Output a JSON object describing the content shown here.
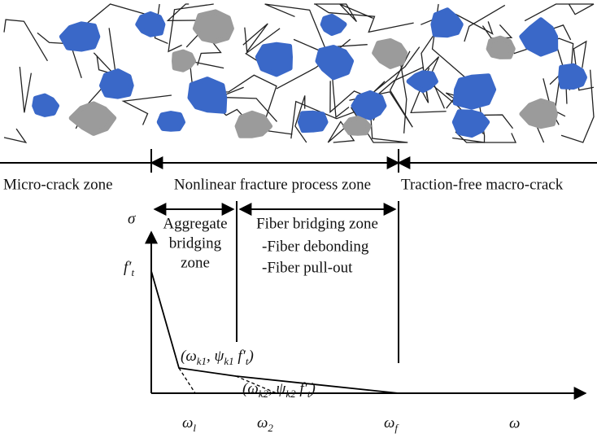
{
  "zones": {
    "micro_crack": "Micro-crack zone",
    "fracture_process": "Nonlinear fracture process zone",
    "macro_crack": "Traction-free macro-crack"
  },
  "subzones": {
    "aggregate": [
      "Aggregate",
      "bridging",
      "zone"
    ],
    "fiber": {
      "title": "Fiber bridging zone",
      "items": [
        "-Fiber debonding",
        "-Fiber pull-out"
      ]
    }
  },
  "axes": {
    "y": "σ",
    "x": "ω"
  },
  "math": {
    "ft": [
      {
        "t": "f′",
        "sub": "t"
      }
    ],
    "omega_l": [
      {
        "t": "ω",
        "sub": "l"
      }
    ],
    "omega_2": [
      {
        "t": "ω",
        "sub": "2"
      }
    ],
    "omega_f": [
      {
        "t": "ω",
        "sub": "f"
      }
    ],
    "point1": [
      {
        "t": "(ω",
        "sub": "k1"
      },
      {
        "t": ", ψ",
        "sub": "k1"
      },
      {
        "t": " f′",
        "sub": "t"
      },
      {
        "t": ")"
      }
    ],
    "point2": [
      {
        "t": "(ω",
        "sub": "k2"
      },
      {
        "t": ", ψ",
        "sub": "k2"
      },
      {
        "t": " f′",
        "sub": "t"
      },
      {
        "t": ")"
      }
    ]
  }
}
